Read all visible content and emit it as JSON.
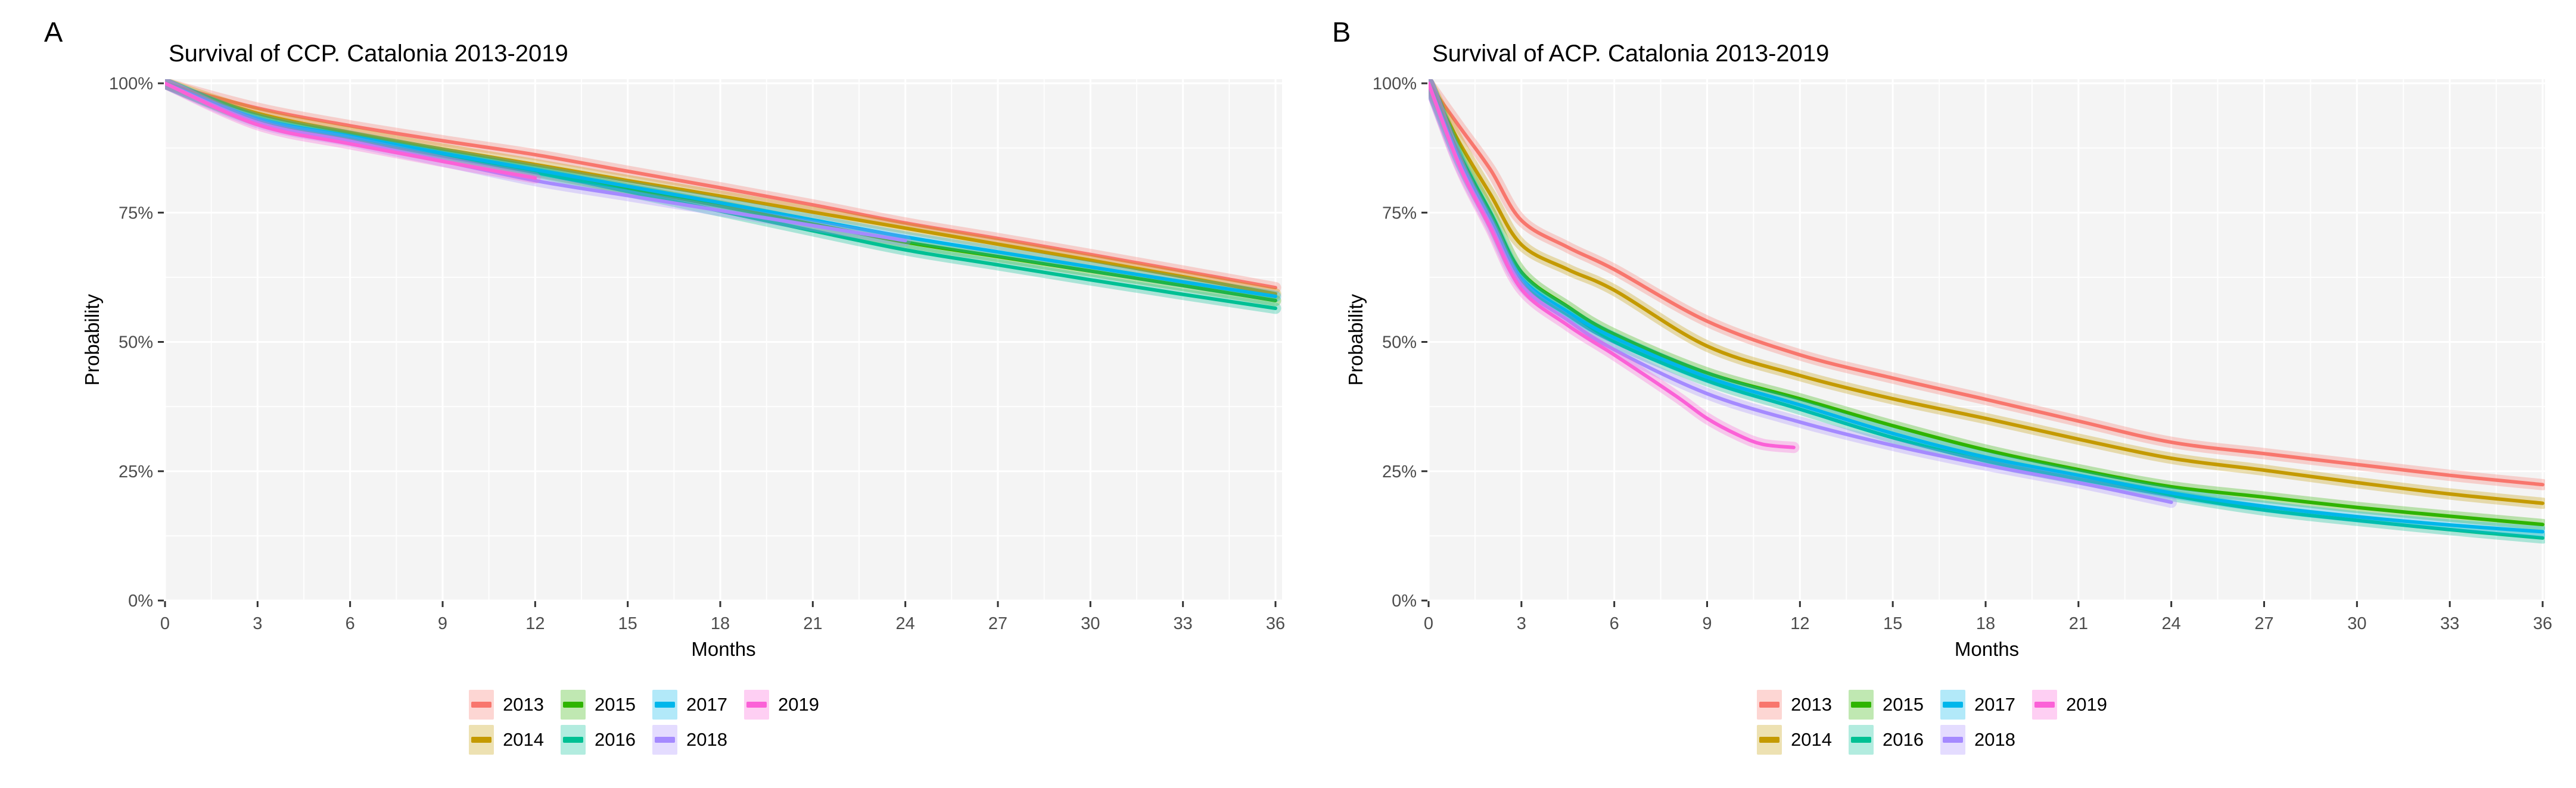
{
  "figure": {
    "background": "#FFFFFF",
    "panel_background": "#F4F4F4",
    "grid_color": "#FFFFFF",
    "tick_color": "#333333",
    "tick_label_color": "#4D4D4D",
    "title_color": "#000000"
  },
  "chart_data": [
    {
      "type": "line",
      "panel_label": "A",
      "title": "Survival of CCP. Catalonia 2013-2019",
      "xlabel": "Months",
      "ylabel": "Probability",
      "xlim": [
        0,
        36
      ],
      "ylim": [
        0,
        100
      ],
      "x_ticks": [
        0,
        3,
        6,
        9,
        12,
        15,
        18,
        21,
        24,
        27,
        30,
        33,
        36
      ],
      "y_ticks": [
        0,
        25,
        50,
        75,
        100
      ],
      "y_tick_labels": [
        "0%",
        "25%",
        "50%",
        "75%",
        "100%"
      ],
      "grid_major": true,
      "grid_minor": true,
      "legend_position": "bottom",
      "series": [
        {
          "name": "2013",
          "color": "#F8766D",
          "x": [
            0,
            3,
            6,
            9,
            12,
            15,
            18,
            21,
            24,
            27,
            30,
            33,
            36
          ],
          "y": [
            100,
            95.2,
            91.8,
            88.9,
            86.2,
            83.0,
            79.8,
            76.5,
            73.0,
            70.0,
            66.9,
            63.7,
            60.5
          ]
        },
        {
          "name": "2014",
          "color": "#C49A00",
          "x": [
            0,
            3,
            6,
            9,
            12,
            15,
            18,
            21,
            24,
            27,
            30,
            33,
            36
          ],
          "y": [
            100,
            94.2,
            90.5,
            87.3,
            84.3,
            81.2,
            78.2,
            75.1,
            72.0,
            68.9,
            65.8,
            62.6,
            59.3
          ]
        },
        {
          "name": "2015",
          "color": "#2FB400",
          "x": [
            0,
            3,
            6,
            9,
            12,
            15,
            18,
            21,
            24,
            27,
            30,
            33,
            36
          ],
          "y": [
            100,
            93.0,
            89.5,
            86.2,
            83.0,
            79.6,
            76.3,
            72.8,
            69.3,
            66.5,
            63.7,
            60.9,
            58.0
          ]
        },
        {
          "name": "2016",
          "color": "#00C094",
          "x": [
            0,
            3,
            6,
            9,
            12,
            15,
            18,
            21,
            24,
            27,
            30,
            33,
            36
          ],
          "y": [
            100,
            92.8,
            89.3,
            86.0,
            82.8,
            79.1,
            75.3,
            71.5,
            67.8,
            64.9,
            62.0,
            59.2,
            56.5
          ]
        },
        {
          "name": "2017",
          "color": "#00B6EB",
          "x": [
            0,
            3,
            6,
            9,
            12,
            15,
            18,
            21,
            24,
            27,
            30,
            33,
            36
          ],
          "y": [
            100,
            93.2,
            89.8,
            86.5,
            83.3,
            80.1,
            76.9,
            73.6,
            70.3,
            67.4,
            64.5,
            61.6,
            58.8
          ]
        },
        {
          "name": "2018",
          "color": "#A58AFF",
          "x": [
            0,
            3,
            6,
            9,
            12,
            15,
            18,
            21,
            24
          ],
          "y": [
            100,
            92.4,
            88.8,
            85.0,
            81.2,
            78.3,
            75.4,
            72.5,
            69.6
          ]
        },
        {
          "name": "2019",
          "color": "#FB61D7",
          "x": [
            0,
            3,
            6,
            9,
            12
          ],
          "y": [
            100,
            92.0,
            88.3,
            84.9,
            81.7
          ]
        }
      ]
    },
    {
      "type": "line",
      "panel_label": "B",
      "title": "Survival of ACP. Catalonia 2013-2019",
      "xlabel": "Months",
      "ylabel": "Probability",
      "xlim": [
        0,
        36
      ],
      "ylim": [
        0,
        100
      ],
      "x_ticks": [
        0,
        3,
        6,
        9,
        12,
        15,
        18,
        21,
        24,
        27,
        30,
        33,
        36
      ],
      "y_ticks": [
        0,
        25,
        50,
        75,
        100
      ],
      "y_tick_labels": [
        "0%",
        "25%",
        "50%",
        "75%",
        "100%"
      ],
      "grid_major": true,
      "grid_minor": true,
      "legend_position": "bottom",
      "series": [
        {
          "name": "2013",
          "color": "#F8766D",
          "x": [
            0,
            1,
            2,
            3,
            4.5,
            6,
            9,
            12,
            15,
            18,
            21,
            24,
            27,
            30,
            33,
            36
          ],
          "y": [
            100,
            91.6,
            83.3,
            73.5,
            68.3,
            64.0,
            54.0,
            47.5,
            43.0,
            38.9,
            34.7,
            30.6,
            28.4,
            26.3,
            24.2,
            22.4
          ]
        },
        {
          "name": "2014",
          "color": "#C49A00",
          "x": [
            0,
            1,
            2,
            3,
            4.5,
            6,
            9,
            12,
            15,
            18,
            21,
            24,
            27,
            30,
            33,
            36
          ],
          "y": [
            100,
            88.5,
            78.5,
            68.8,
            64.0,
            60.0,
            49.2,
            43.5,
            39.0,
            35.2,
            31.2,
            27.5,
            25.2,
            22.8,
            20.6,
            18.8
          ]
        },
        {
          "name": "2015",
          "color": "#2FB400",
          "x": [
            0,
            1,
            2,
            3,
            4.5,
            6,
            9,
            12,
            15,
            18,
            21,
            24,
            27,
            30,
            33,
            36
          ],
          "y": [
            100,
            86.2,
            75.0,
            63.5,
            56.8,
            51.5,
            44.0,
            39.0,
            33.8,
            29.1,
            25.3,
            22.0,
            20.0,
            18.0,
            16.3,
            14.7
          ]
        },
        {
          "name": "2016",
          "color": "#00C094",
          "x": [
            0,
            1,
            2,
            3,
            4.5,
            6,
            9,
            12,
            15,
            18,
            21,
            24,
            27,
            30,
            33,
            36
          ],
          "y": [
            100,
            85.0,
            73.4,
            61.8,
            55.2,
            50.0,
            42.5,
            37.0,
            31.5,
            27.0,
            23.5,
            20.3,
            17.5,
            15.5,
            13.7,
            12.1
          ]
        },
        {
          "name": "2017",
          "color": "#00B6EB",
          "x": [
            0,
            1,
            2,
            3,
            4.5,
            6,
            9,
            12,
            15,
            18,
            21,
            24,
            27,
            30,
            33,
            36
          ],
          "y": [
            100,
            85.2,
            73.7,
            62.3,
            55.8,
            50.8,
            43.2,
            37.8,
            32.3,
            27.7,
            24.2,
            20.8,
            18.2,
            16.2,
            14.6,
            13.3
          ]
        },
        {
          "name": "2018",
          "color": "#A58AFF",
          "x": [
            0,
            1,
            2,
            3,
            4.5,
            6,
            9,
            12,
            15,
            18,
            21,
            24
          ],
          "y": [
            100,
            84.3,
            72.6,
            61.0,
            54.2,
            48.5,
            40.0,
            34.5,
            30.0,
            26.2,
            22.8,
            19.0
          ]
        },
        {
          "name": "2019",
          "color": "#FB61D7",
          "x": [
            0,
            1,
            2,
            3,
            4.5,
            6,
            8,
            9,
            10,
            10.8,
            11.8
          ],
          "y": [
            100,
            84.0,
            72.0,
            60.2,
            53.2,
            47.5,
            39.5,
            35.2,
            32.0,
            30.2,
            29.6
          ]
        }
      ]
    }
  ]
}
